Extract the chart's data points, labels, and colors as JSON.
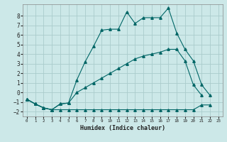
{
  "xlabel": "Humidex (Indice chaleur)",
  "bg_color": "#cce8e8",
  "grid_color": "#aacccc",
  "line_color": "#006666",
  "xlim": [
    -0.5,
    23.5
  ],
  "ylim": [
    -2.5,
    9.2
  ],
  "xticks": [
    0,
    1,
    2,
    3,
    4,
    5,
    6,
    7,
    8,
    9,
    10,
    11,
    12,
    13,
    14,
    15,
    16,
    17,
    18,
    19,
    20,
    21,
    22,
    23
  ],
  "yticks": [
    -2,
    -1,
    0,
    1,
    2,
    3,
    4,
    5,
    6,
    7,
    8
  ],
  "s1_x": [
    0,
    1,
    2,
    3,
    4,
    5,
    6,
    7,
    8,
    9,
    10,
    11,
    12,
    13,
    14,
    15,
    16,
    17,
    18,
    19,
    20,
    21,
    22
  ],
  "s1_y": [
    -0.7,
    -1.2,
    -1.6,
    -1.8,
    -1.2,
    -1.1,
    1.3,
    3.2,
    4.8,
    6.5,
    6.6,
    6.6,
    8.4,
    7.2,
    7.8,
    7.8,
    7.8,
    8.8,
    6.2,
    4.5,
    3.3,
    0.8,
    -0.3
  ],
  "s2_x": [
    0,
    1,
    2,
    3,
    4,
    5,
    6,
    7,
    8,
    9,
    10,
    11,
    12,
    13,
    14,
    15,
    16,
    17,
    18,
    19,
    20,
    21,
    22
  ],
  "s2_y": [
    -0.7,
    -1.2,
    -1.6,
    -1.8,
    -1.8,
    -1.8,
    -1.8,
    -1.8,
    -1.8,
    -1.8,
    -1.8,
    -1.8,
    -1.8,
    -1.8,
    -1.8,
    -1.8,
    -1.8,
    -1.8,
    -1.8,
    -1.8,
    -1.8,
    -1.3,
    -1.3
  ],
  "s3_x": [
    0,
    1,
    2,
    3,
    4,
    5,
    6,
    7,
    8,
    9,
    10,
    11,
    12,
    13,
    14,
    15,
    16,
    17,
    18,
    19,
    20,
    21
  ],
  "s3_y": [
    -0.7,
    -1.2,
    -1.6,
    -1.8,
    -1.2,
    -1.1,
    0.0,
    0.5,
    1.0,
    1.5,
    2.0,
    2.5,
    3.0,
    3.5,
    3.8,
    4.0,
    4.2,
    4.5,
    4.5,
    3.3,
    0.8,
    -0.3
  ]
}
